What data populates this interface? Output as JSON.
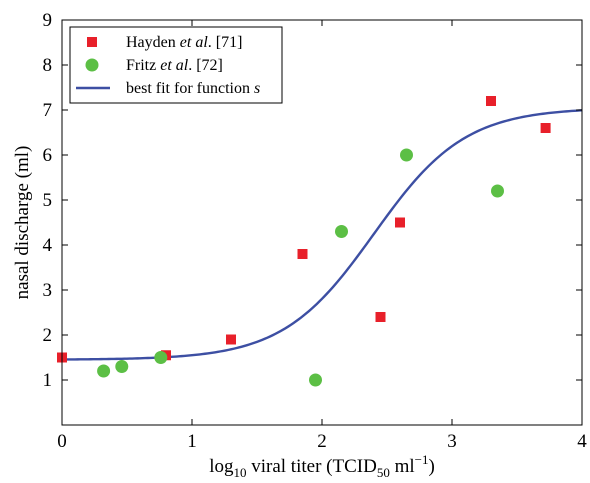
{
  "chart_data": {
    "type": "scatter",
    "xlabel": {
      "main": "log",
      "sub1": "10",
      "mid": " viral titer (TCID",
      "sub2": "50",
      "tail": " ml",
      "sup": "−1",
      "end": ")"
    },
    "ylabel": "nasal discharge (ml)",
    "xlim": [
      0,
      4
    ],
    "ylim": [
      0,
      9
    ],
    "xticks": [
      0,
      1,
      2,
      3,
      4
    ],
    "yticks": [
      1,
      2,
      3,
      4,
      5,
      6,
      7,
      8,
      9
    ],
    "legend_position": "top-left",
    "series": [
      {
        "name_parts": [
          "Hayden ",
          "et al",
          ". [71]"
        ],
        "marker": "square",
        "color": "#e8202a",
        "points": [
          [
            0.0,
            1.5
          ],
          [
            0.8,
            1.55
          ],
          [
            1.3,
            1.9
          ],
          [
            1.85,
            3.8
          ],
          [
            2.45,
            2.4
          ],
          [
            2.6,
            4.5
          ],
          [
            3.3,
            7.2
          ],
          [
            3.72,
            6.6
          ]
        ]
      },
      {
        "name_parts": [
          "Fritz ",
          "et al",
          ". [72]"
        ],
        "marker": "circle",
        "color": "#5cbf45",
        "points": [
          [
            0.32,
            1.2
          ],
          [
            0.46,
            1.3
          ],
          [
            0.76,
            1.5
          ],
          [
            1.95,
            1.0
          ],
          [
            2.15,
            4.3
          ],
          [
            2.65,
            6.0
          ],
          [
            3.35,
            5.2
          ]
        ]
      },
      {
        "name_parts": [
          "best fit for function ",
          "s"
        ],
        "marker": "line",
        "color": "#3d4fa3",
        "fit": {
          "base": 1.45,
          "amplitude": 5.6,
          "midpoint": 2.4,
          "width": 0.35
        }
      }
    ]
  }
}
